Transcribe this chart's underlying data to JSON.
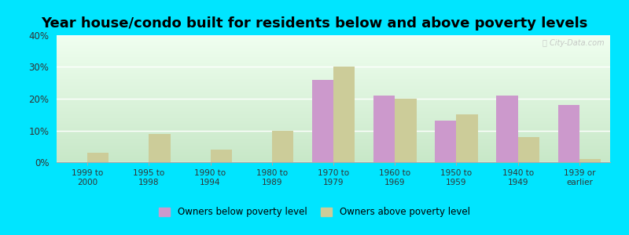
{
  "title": "Year house/condo built for residents below and above poverty levels",
  "categories": [
    "1999 to\n2000",
    "1995 to\n1998",
    "1990 to\n1994",
    "1980 to\n1989",
    "1970 to\n1979",
    "1960 to\n1969",
    "1950 to\n1959",
    "1940 to\n1949",
    "1939 or\nearlier"
  ],
  "below_poverty": [
    0,
    0,
    0,
    0,
    26,
    21,
    13,
    21,
    18
  ],
  "above_poverty": [
    3,
    9,
    4,
    10,
    30,
    20,
    15,
    8,
    1
  ],
  "below_color": "#cc99cc",
  "above_color": "#cccc99",
  "outer_background": "#00e5ff",
  "ylim": [
    0,
    40
  ],
  "yticks": [
    0,
    10,
    20,
    30,
    40
  ],
  "ytick_labels": [
    "0%",
    "10%",
    "20%",
    "30%",
    "40%"
  ],
  "legend_below": "Owners below poverty level",
  "legend_above": "Owners above poverty level",
  "bar_width": 0.35,
  "title_fontsize": 13
}
